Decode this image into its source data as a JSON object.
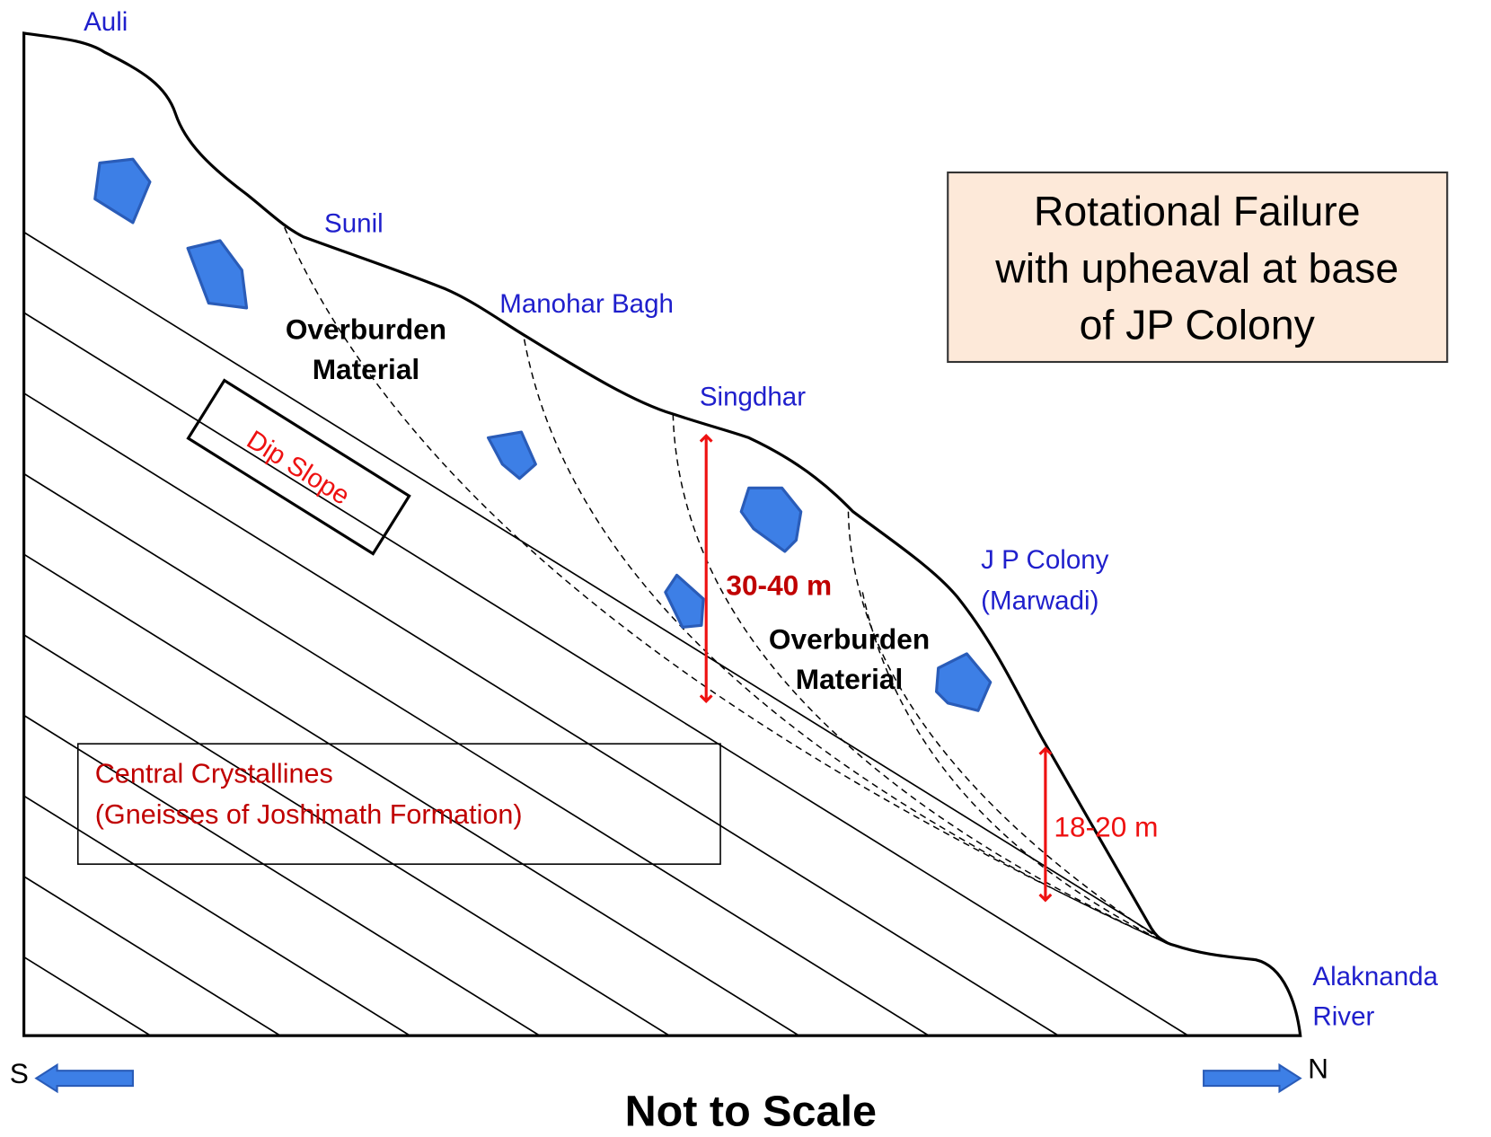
{
  "places": [
    "Auli",
    "Sunil",
    "Manohar Bagh",
    "Singdhar"
  ],
  "jp_colony": [
    "J P Colony",
    "(Marwadi)"
  ],
  "river": [
    "Alaknanda",
    "River"
  ],
  "title_box": [
    "Rotational Failure",
    "with upheaval at base",
    "of JP Colony"
  ],
  "overburden_upper": [
    "Overburden",
    "Material"
  ],
  "overburden_lower": [
    "Overburden",
    "Material"
  ],
  "dip_slope": "Dip Slope",
  "formation": [
    "Central Crystallines",
    "(Gneisses of Joshimath Formation)"
  ],
  "measurements": [
    "30-40 m",
    "18-20 m"
  ],
  "directions": [
    "S",
    "N"
  ],
  "footer": "Not to Scale"
}
